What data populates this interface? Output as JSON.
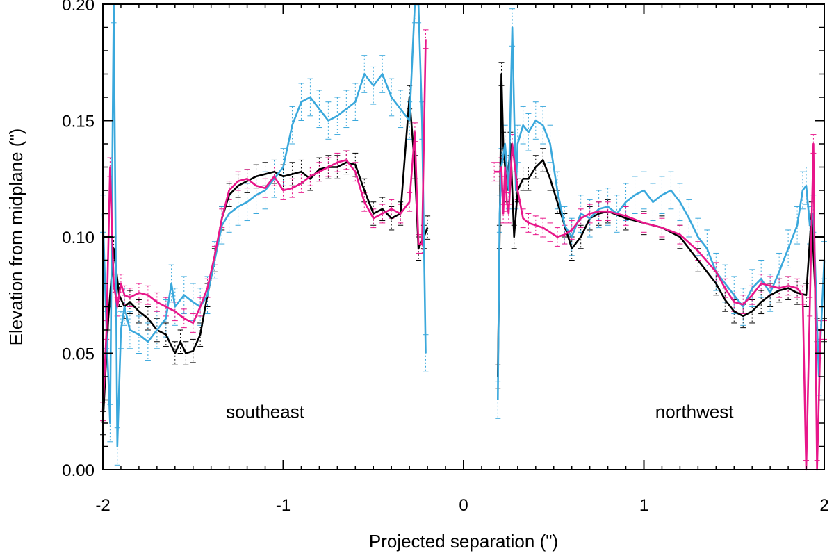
{
  "chart_data": {
    "type": "line",
    "title": "",
    "xlabel": "Projected separation (\")",
    "ylabel": "Elevation from midplane (\")",
    "xlim": [
      -2,
      2
    ],
    "ylim": [
      0,
      0.2
    ],
    "x_ticks": [
      -2,
      -1,
      0,
      1,
      2
    ],
    "x_tick_labels": [
      "-2",
      "-1",
      "0",
      "1",
      "2"
    ],
    "y_ticks": [
      0,
      0.05,
      0.1,
      0.15,
      0.2
    ],
    "y_tick_labels": [
      "0.00",
      "0.05",
      "0.10",
      "0.15",
      "0.20"
    ],
    "annotations": [
      {
        "text": "southeast",
        "x": -1.1,
        "y": 0.025
      },
      {
        "text": "northwest",
        "x": 1.28,
        "y": 0.025
      }
    ],
    "colors": {
      "black": "#000000",
      "blue": "#3aa8dc",
      "magenta": "#e8168a"
    },
    "series": [
      {
        "name": "black",
        "color": "#000000",
        "error": 0.005,
        "segments": [
          {
            "x": [
              -2.0,
              -1.97,
              -1.94,
              -1.91,
              -1.88,
              -1.85,
              -1.8,
              -1.75,
              -1.7,
              -1.65,
              -1.6,
              -1.57,
              -1.54,
              -1.5,
              -1.46,
              -1.42,
              -1.38,
              -1.34,
              -1.3,
              -1.25,
              -1.2,
              -1.15,
              -1.1,
              -1.05,
              -1.0,
              -0.95,
              -0.9,
              -0.85,
              -0.8,
              -0.75,
              -0.7,
              -0.65,
              -0.6,
              -0.55,
              -0.5,
              -0.45,
              -0.4,
              -0.35,
              -0.3,
              -0.27,
              -0.25,
              -0.22,
              -0.2
            ],
            "y": [
              0.02,
              0.065,
              0.095,
              0.075,
              0.07,
              0.072,
              0.068,
              0.065,
              0.06,
              0.058,
              0.05,
              0.055,
              0.05,
              0.051,
              0.058,
              0.075,
              0.09,
              0.108,
              0.118,
              0.122,
              0.124,
              0.126,
              0.127,
              0.128,
              0.126,
              0.127,
              0.128,
              0.125,
              0.129,
              0.13,
              0.13,
              0.132,
              0.131,
              0.12,
              0.11,
              0.112,
              0.108,
              0.11,
              0.16,
              0.13,
              0.095,
              0.1,
              0.104
            ]
          },
          {
            "x": [
              0.19,
              0.2,
              0.21,
              0.22,
              0.24,
              0.26,
              0.28,
              0.3,
              0.33,
              0.36,
              0.4,
              0.44,
              0.48,
              0.52,
              0.56,
              0.6,
              0.65,
              0.7,
              0.75,
              0.8,
              0.9,
              1.0,
              1.1,
              1.2,
              1.3,
              1.4,
              1.45,
              1.5,
              1.55,
              1.6,
              1.65,
              1.7,
              1.75,
              1.8,
              1.85,
              1.9,
              1.93,
              1.96,
              2.0
            ],
            "y": [
              0.04,
              0.1,
              0.17,
              0.14,
              0.12,
              0.14,
              0.1,
              0.12,
              0.125,
              0.125,
              0.13,
              0.133,
              0.125,
              0.115,
              0.105,
              0.095,
              0.1,
              0.108,
              0.11,
              0.111,
              0.108,
              0.106,
              0.104,
              0.1,
              0.09,
              0.08,
              0.073,
              0.068,
              0.066,
              0.068,
              0.072,
              0.075,
              0.077,
              0.078,
              0.076,
              0.075,
              0.11,
              0.06,
              0.06
            ]
          }
        ]
      },
      {
        "name": "blue",
        "color": "#3aa8dc",
        "error": 0.008,
        "segments": [
          {
            "x": [
              -2.0,
              -1.98,
              -1.96,
              -1.94,
              -1.92,
              -1.9,
              -1.88,
              -1.85,
              -1.8,
              -1.75,
              -1.7,
              -1.65,
              -1.62,
              -1.6,
              -1.55,
              -1.5,
              -1.46,
              -1.42,
              -1.38,
              -1.34,
              -1.3,
              -1.25,
              -1.2,
              -1.15,
              -1.1,
              -1.05,
              -1.0,
              -0.95,
              -0.9,
              -0.85,
              -0.8,
              -0.75,
              -0.7,
              -0.65,
              -0.6,
              -0.55,
              -0.5,
              -0.45,
              -0.4,
              -0.35,
              -0.3,
              -0.27,
              -0.25,
              -0.23,
              -0.21
            ],
            "y": [
              0.11,
              0.06,
              0.02,
              0.2,
              0.01,
              0.06,
              0.07,
              0.06,
              0.058,
              0.055,
              0.06,
              0.065,
              0.08,
              0.07,
              0.075,
              0.072,
              0.07,
              0.075,
              0.09,
              0.105,
              0.11,
              0.113,
              0.115,
              0.118,
              0.12,
              0.125,
              0.13,
              0.148,
              0.158,
              0.16,
              0.155,
              0.15,
              0.152,
              0.155,
              0.158,
              0.17,
              0.165,
              0.17,
              0.16,
              0.155,
              0.15,
              0.2,
              0.2,
              0.15,
              0.05
            ]
          },
          {
            "x": [
              0.19,
              0.2,
              0.21,
              0.23,
              0.25,
              0.27,
              0.29,
              0.3,
              0.33,
              0.36,
              0.4,
              0.44,
              0.48,
              0.52,
              0.56,
              0.6,
              0.65,
              0.7,
              0.75,
              0.8,
              0.85,
              0.9,
              0.95,
              1.0,
              1.05,
              1.1,
              1.15,
              1.2,
              1.25,
              1.3,
              1.35,
              1.4,
              1.45,
              1.5,
              1.55,
              1.6,
              1.65,
              1.7,
              1.75,
              1.8,
              1.85,
              1.88,
              1.9,
              1.92,
              1.94,
              1.97,
              2.0
            ],
            "y": [
              0.03,
              0.11,
              0.13,
              0.14,
              0.12,
              0.19,
              0.12,
              0.14,
              0.148,
              0.145,
              0.15,
              0.148,
              0.14,
              0.12,
              0.105,
              0.1,
              0.11,
              0.108,
              0.112,
              0.113,
              0.11,
              0.115,
              0.118,
              0.12,
              0.115,
              0.118,
              0.12,
              0.115,
              0.108,
              0.1,
              0.095,
              0.085,
              0.08,
              0.075,
              0.07,
              0.078,
              0.082,
              0.076,
              0.085,
              0.095,
              0.105,
              0.12,
              0.122,
              0.105,
              0.11,
              0.04,
              0.09
            ]
          }
        ]
      },
      {
        "name": "magenta",
        "color": "#e8168a",
        "error": 0.004,
        "segments": [
          {
            "x": [
              -2.0,
              -1.98,
              -1.96,
              -1.94,
              -1.92,
              -1.9,
              -1.88,
              -1.85,
              -1.8,
              -1.75,
              -1.7,
              -1.65,
              -1.6,
              -1.55,
              -1.5,
              -1.46,
              -1.42,
              -1.38,
              -1.34,
              -1.3,
              -1.25,
              -1.2,
              -1.15,
              -1.1,
              -1.05,
              -1.0,
              -0.95,
              -0.9,
              -0.85,
              -0.8,
              -0.75,
              -0.7,
              -0.65,
              -0.6,
              -0.55,
              -0.5,
              -0.45,
              -0.4,
              -0.35,
              -0.3,
              -0.27,
              -0.25,
              -0.23,
              -0.21
            ],
            "y": [
              0.025,
              0.06,
              0.13,
              0.08,
              0.07,
              0.08,
              0.075,
              0.074,
              0.076,
              0.075,
              0.072,
              0.07,
              0.068,
              0.065,
              0.063,
              0.07,
              0.078,
              0.092,
              0.108,
              0.12,
              0.124,
              0.125,
              0.122,
              0.121,
              0.126,
              0.12,
              0.121,
              0.123,
              0.126,
              0.128,
              0.13,
              0.132,
              0.133,
              0.128,
              0.115,
              0.108,
              0.11,
              0.112,
              0.11,
              0.115,
              0.145,
              0.097,
              0.097,
              0.185
            ]
          },
          {
            "x": [
              0.17,
              0.2,
              0.21,
              0.22,
              0.23,
              0.24,
              0.25,
              0.27,
              0.3,
              0.33,
              0.36,
              0.4,
              0.44,
              0.48,
              0.52,
              0.56,
              0.6,
              0.65,
              0.7,
              0.75,
              0.8,
              0.9,
              1.0,
              1.1,
              1.2,
              1.3,
              1.4,
              1.45,
              1.5,
              1.55,
              1.6,
              1.65,
              1.7,
              1.75,
              1.8,
              1.85,
              1.88,
              1.9,
              1.92,
              1.94,
              1.96,
              1.98,
              2.0
            ],
            "y": [
              0.128,
              0.128,
              0.13,
              0.11,
              0.13,
              0.115,
              0.11,
              0.14,
              0.12,
              0.108,
              0.106,
              0.105,
              0.104,
              0.102,
              0.1,
              0.101,
              0.103,
              0.108,
              0.11,
              0.111,
              0.111,
              0.109,
              0.106,
              0.104,
              0.101,
              0.094,
              0.085,
              0.078,
              0.072,
              0.071,
              0.075,
              0.08,
              0.079,
              0.078,
              0.079,
              0.078,
              0.075,
              0.0,
              0.07,
              0.14,
              0.0,
              0.06,
              0.06
            ]
          }
        ]
      }
    ]
  }
}
